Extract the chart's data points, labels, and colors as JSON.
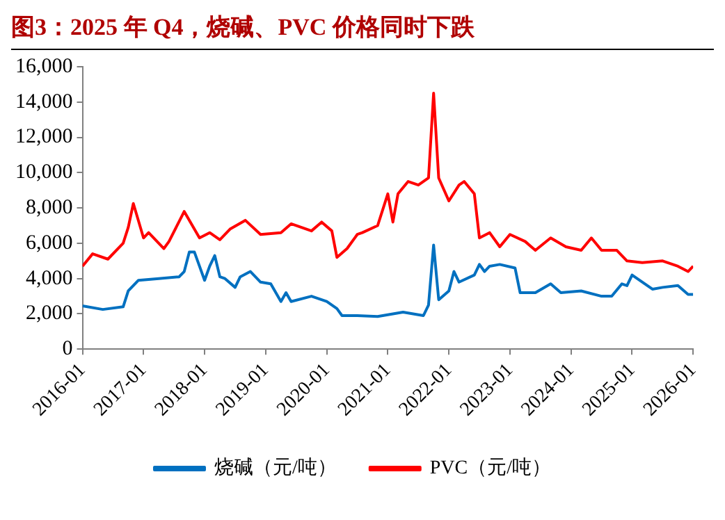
{
  "chart_data": {
    "type": "line",
    "title": "图3：2025 年 Q4，烧碱、PVC 价格同时下跌",
    "legend": "bottom",
    "grid": false,
    "marker": "none",
    "line_style": "solid",
    "xlim": [
      "2016-01",
      "2026-01"
    ],
    "xticks": [
      "2016-01",
      "2017-01",
      "2018-01",
      "2019-01",
      "2020-01",
      "2021-01",
      "2022-01",
      "2023-01",
      "2024-01",
      "2025-01",
      "2026-01"
    ],
    "ylim": [
      0,
      16000
    ],
    "yticks": [
      {
        "value": 0,
        "label": "0"
      },
      {
        "value": 2000,
        "label": "2,000"
      },
      {
        "value": 4000,
        "label": "4,000"
      },
      {
        "value": 6000,
        "label": "6,000"
      },
      {
        "value": 8000,
        "label": "8,000"
      },
      {
        "value": 10000,
        "label": "10,000"
      },
      {
        "value": 12000,
        "label": "12,000"
      },
      {
        "value": 14000,
        "label": "14,000"
      },
      {
        "value": 16000,
        "label": "16,000"
      }
    ],
    "series": [
      {
        "name": "烧碱（元/吨）",
        "color": "#0070c0",
        "x": [
          "2016-01",
          "2016-05",
          "2016-09",
          "2016-10",
          "2016-12",
          "2017-04",
          "2017-08",
          "2017-09",
          "2017-10",
          "2017-11",
          "2017-12",
          "2018-01",
          "2018-02",
          "2018-03",
          "2018-04",
          "2018-05",
          "2018-07",
          "2018-08",
          "2018-10",
          "2018-12",
          "2019-02",
          "2019-04",
          "2019-05",
          "2019-06",
          "2019-10",
          "2020-01",
          "2020-03",
          "2020-04",
          "2020-07",
          "2020-11",
          "2021-04",
          "2021-08",
          "2021-09",
          "2021-10",
          "2021-11",
          "2022-01",
          "2022-02",
          "2022-03",
          "2022-06",
          "2022-07",
          "2022-08",
          "2022-09",
          "2022-11",
          "2023-02",
          "2023-03",
          "2023-06",
          "2023-09",
          "2023-11",
          "2024-03",
          "2024-07",
          "2024-09",
          "2024-11",
          "2024-12",
          "2025-01",
          "2025-05",
          "2025-07",
          "2025-10",
          "2025-12",
          "2026-01"
        ],
        "values": [
          2450,
          2250,
          2400,
          3300,
          3900,
          4000,
          4100,
          4400,
          5500,
          5500,
          4700,
          3900,
          4700,
          5300,
          4100,
          4000,
          3500,
          4100,
          4400,
          3800,
          3700,
          2700,
          3200,
          2700,
          3000,
          2700,
          2300,
          1900,
          1900,
          1850,
          2100,
          1900,
          2500,
          5900,
          2800,
          3300,
          4400,
          3800,
          4200,
          4800,
          4400,
          4700,
          4800,
          4600,
          3200,
          3200,
          3700,
          3200,
          3300,
          3000,
          3000,
          3700,
          3600,
          4200,
          3400,
          3500,
          3600,
          3100,
          3100
        ]
      },
      {
        "name": "PVC（元/吨）",
        "color": "#ff0000",
        "x": [
          "2016-01",
          "2016-03",
          "2016-06",
          "2016-09",
          "2016-10",
          "2016-11",
          "2017-01",
          "2017-02",
          "2017-05",
          "2017-06",
          "2017-09",
          "2017-12",
          "2018-02",
          "2018-04",
          "2018-06",
          "2018-09",
          "2018-12",
          "2019-04",
          "2019-06",
          "2019-10",
          "2019-12",
          "2020-02",
          "2020-03",
          "2020-05",
          "2020-07",
          "2020-08",
          "2020-11",
          "2021-01",
          "2021-02",
          "2021-03",
          "2021-05",
          "2021-07",
          "2021-09",
          "2021-10",
          "2021-11",
          "2022-01",
          "2022-03",
          "2022-04",
          "2022-06",
          "2022-07",
          "2022-09",
          "2022-11",
          "2023-01",
          "2023-04",
          "2023-06",
          "2023-09",
          "2023-12",
          "2024-03",
          "2024-05",
          "2024-07",
          "2024-10",
          "2024-12",
          "2025-03",
          "2025-07",
          "2025-10",
          "2025-12",
          "2026-01"
        ],
        "values": [
          4700,
          5400,
          5100,
          6000,
          6900,
          8250,
          6300,
          6600,
          5700,
          6100,
          7800,
          6300,
          6600,
          6200,
          6800,
          7300,
          6500,
          6600,
          7100,
          6700,
          7200,
          6700,
          5200,
          5700,
          6500,
          6600,
          7000,
          8800,
          7200,
          8800,
          9500,
          9300,
          9700,
          14500,
          9700,
          8400,
          9300,
          9500,
          8800,
          6300,
          6600,
          5800,
          6500,
          6100,
          5600,
          6300,
          5800,
          5600,
          6300,
          5600,
          5600,
          5000,
          4900,
          5000,
          4700,
          4400,
          4700
        ]
      }
    ]
  }
}
